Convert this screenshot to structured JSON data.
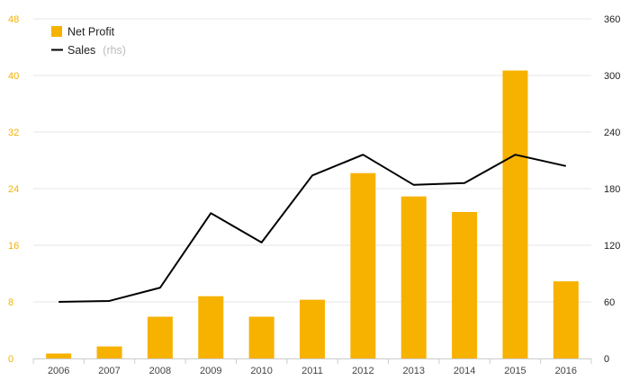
{
  "chart_data": {
    "type": "bar",
    "categories": [
      "2006",
      "2007",
      "2008",
      "2009",
      "2010",
      "2011",
      "2012",
      "2013",
      "2014",
      "2015",
      "2016"
    ],
    "series": [
      {
        "name": "Net Profit",
        "type": "bar",
        "axis": "left",
        "color": "#F7B200",
        "values": [
          0.7,
          1.7,
          5.9,
          8.8,
          5.9,
          8.3,
          26.2,
          22.9,
          20.7,
          40.7,
          10.9
        ]
      },
      {
        "name": "Sales",
        "name_suffix": "(rhs)",
        "type": "line",
        "axis": "right",
        "color": "#000000",
        "values": [
          60,
          61,
          75,
          154,
          123,
          194,
          216,
          184,
          186,
          216,
          204
        ]
      }
    ],
    "y_left": {
      "min": 0,
      "max": 48,
      "ticks": [
        "0",
        "8",
        "16",
        "24",
        "32",
        "40",
        "48"
      ],
      "color": "#F7B200"
    },
    "y_right": {
      "min": 0,
      "max": 360,
      "ticks": [
        "0",
        "60",
        "120",
        "180",
        "240",
        "300",
        "360"
      ],
      "color": "#222222"
    },
    "grid": true,
    "legend_position": "top-left"
  }
}
